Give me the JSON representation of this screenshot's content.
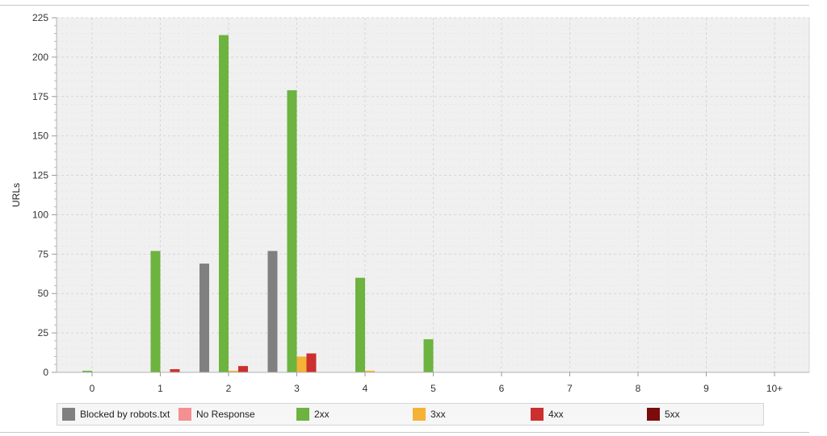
{
  "chart_data": {
    "type": "bar",
    "ylabel": "URLs",
    "xlabel": "",
    "categories": [
      "0",
      "1",
      "2",
      "3",
      "4",
      "5",
      "6",
      "7",
      "8",
      "9",
      "10+"
    ],
    "ylim": [
      0,
      225
    ],
    "yticks": [
      0,
      25,
      50,
      75,
      100,
      125,
      150,
      175,
      200,
      225
    ],
    "grid": true,
    "legend_position": "bottom",
    "series": [
      {
        "name": "Blocked by robots.txt",
        "color": "#808080",
        "values": [
          0,
          0,
          69,
          77,
          0,
          0,
          0,
          0,
          0,
          0,
          0
        ]
      },
      {
        "name": "No Response",
        "color": "#f48f92",
        "values": [
          0,
          0,
          0,
          0,
          0,
          0,
          0,
          0,
          0,
          0,
          0
        ]
      },
      {
        "name": "2xx",
        "color": "#6db33f",
        "values": [
          1,
          77,
          214,
          179,
          60,
          21,
          0,
          0,
          0,
          0,
          0
        ]
      },
      {
        "name": "3xx",
        "color": "#f5b335",
        "values": [
          0,
          0,
          1,
          10,
          1,
          0,
          0,
          0,
          0,
          0,
          0
        ]
      },
      {
        "name": "4xx",
        "color": "#cc2f2f",
        "values": [
          0,
          2,
          4,
          12,
          0,
          0,
          0,
          0,
          0,
          0,
          0
        ]
      },
      {
        "name": "5xx",
        "color": "#7a0c0c",
        "values": [
          0,
          0,
          0,
          0,
          0,
          0,
          0,
          0,
          0,
          0,
          0
        ]
      }
    ]
  }
}
